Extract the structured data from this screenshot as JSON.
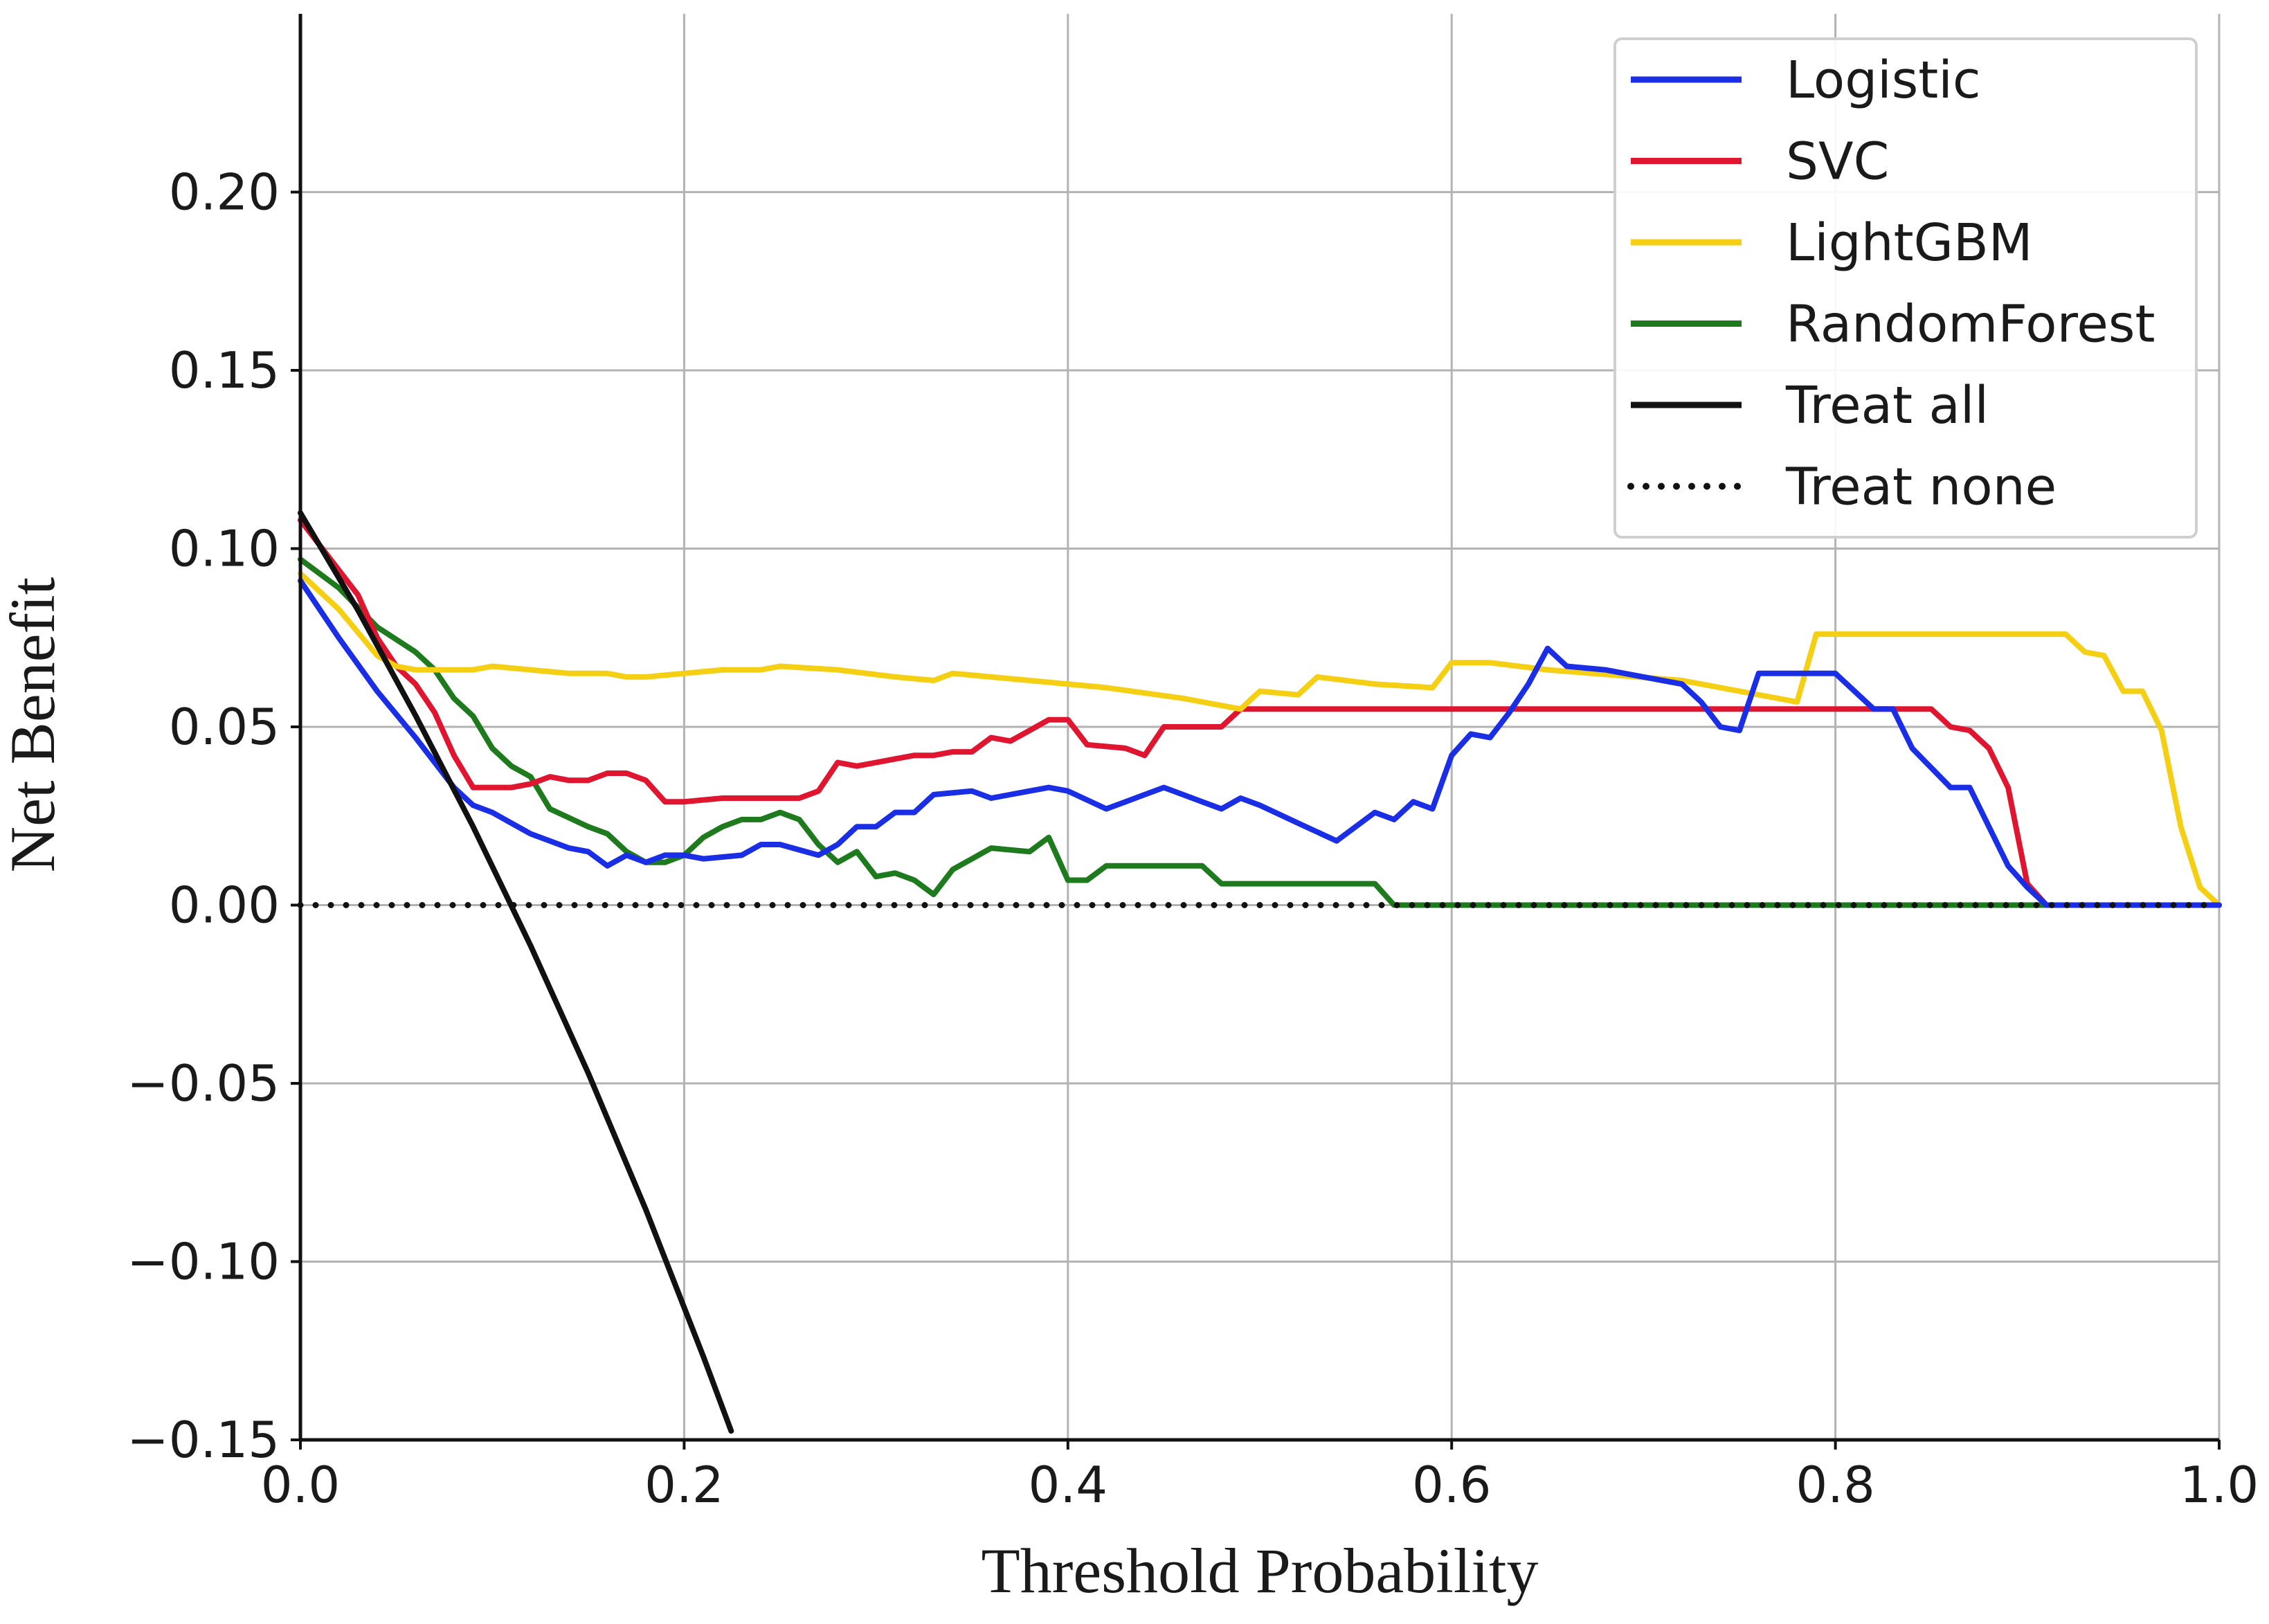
{
  "chart_data": {
    "type": "line",
    "xlabel": "Threshold Probability",
    "ylabel": "Net Benefit",
    "xlim": [
      0.0,
      1.0
    ],
    "ylim": [
      -0.15,
      0.25
    ],
    "xticks": [
      0.0,
      0.2,
      0.4,
      0.6,
      0.8,
      1.0
    ],
    "xtick_labels": [
      "0.0",
      "0.2",
      "0.4",
      "0.6",
      "0.8",
      "1.0"
    ],
    "yticks": [
      -0.15,
      -0.1,
      -0.05,
      0.0,
      0.05,
      0.1,
      0.15,
      0.2
    ],
    "ytick_labels": [
      "−0.15",
      "−0.10",
      "−0.05",
      "0.00",
      "0.05",
      "0.10",
      "0.15",
      "0.20"
    ],
    "grid": true,
    "legend_position": "top-right",
    "series": [
      {
        "name": "Logistic",
        "color": "#1a2ee6",
        "style": "solid",
        "points": [
          [
            0.0,
            0.091
          ],
          [
            0.02,
            0.075
          ],
          [
            0.04,
            0.06
          ],
          [
            0.06,
            0.047
          ],
          [
            0.08,
            0.033
          ],
          [
            0.09,
            0.028
          ],
          [
            0.1,
            0.026
          ],
          [
            0.11,
            0.023
          ],
          [
            0.12,
            0.02
          ],
          [
            0.14,
            0.016
          ],
          [
            0.15,
            0.015
          ],
          [
            0.16,
            0.011
          ],
          [
            0.17,
            0.014
          ],
          [
            0.18,
            0.012
          ],
          [
            0.19,
            0.014
          ],
          [
            0.2,
            0.014
          ],
          [
            0.21,
            0.013
          ],
          [
            0.23,
            0.014
          ],
          [
            0.24,
            0.017
          ],
          [
            0.25,
            0.017
          ],
          [
            0.27,
            0.014
          ],
          [
            0.28,
            0.017
          ],
          [
            0.29,
            0.022
          ],
          [
            0.3,
            0.022
          ],
          [
            0.31,
            0.026
          ],
          [
            0.32,
            0.026
          ],
          [
            0.33,
            0.031
          ],
          [
            0.35,
            0.032
          ],
          [
            0.36,
            0.03
          ],
          [
            0.38,
            0.032
          ],
          [
            0.39,
            0.033
          ],
          [
            0.4,
            0.032
          ],
          [
            0.42,
            0.027
          ],
          [
            0.43,
            0.029
          ],
          [
            0.45,
            0.033
          ],
          [
            0.47,
            0.029
          ],
          [
            0.48,
            0.027
          ],
          [
            0.49,
            0.03
          ],
          [
            0.5,
            0.028
          ],
          [
            0.52,
            0.023
          ],
          [
            0.54,
            0.018
          ],
          [
            0.56,
            0.026
          ],
          [
            0.57,
            0.024
          ],
          [
            0.58,
            0.029
          ],
          [
            0.59,
            0.027
          ],
          [
            0.6,
            0.042
          ],
          [
            0.61,
            0.048
          ],
          [
            0.62,
            0.047
          ],
          [
            0.63,
            0.054
          ],
          [
            0.64,
            0.062
          ],
          [
            0.65,
            0.072
          ],
          [
            0.66,
            0.067
          ],
          [
            0.68,
            0.066
          ],
          [
            0.7,
            0.064
          ],
          [
            0.72,
            0.062
          ],
          [
            0.73,
            0.057
          ],
          [
            0.74,
            0.05
          ],
          [
            0.75,
            0.049
          ],
          [
            0.76,
            0.065
          ],
          [
            0.8,
            0.065
          ],
          [
            0.82,
            0.055
          ],
          [
            0.83,
            0.055
          ],
          [
            0.84,
            0.044
          ],
          [
            0.86,
            0.033
          ],
          [
            0.87,
            0.033
          ],
          [
            0.89,
            0.011
          ],
          [
            0.9,
            0.005
          ],
          [
            0.91,
            0.0
          ],
          [
            1.0,
            0.0
          ]
        ]
      },
      {
        "name": "SVC",
        "color": "#e01530",
        "style": "solid",
        "points": [
          [
            0.0,
            0.108
          ],
          [
            0.01,
            0.101
          ],
          [
            0.02,
            0.094
          ],
          [
            0.03,
            0.087
          ],
          [
            0.04,
            0.075
          ],
          [
            0.05,
            0.067
          ],
          [
            0.06,
            0.062
          ],
          [
            0.07,
            0.054
          ],
          [
            0.08,
            0.042
          ],
          [
            0.09,
            0.033
          ],
          [
            0.1,
            0.033
          ],
          [
            0.11,
            0.033
          ],
          [
            0.12,
            0.034
          ],
          [
            0.13,
            0.036
          ],
          [
            0.14,
            0.035
          ],
          [
            0.15,
            0.035
          ],
          [
            0.16,
            0.037
          ],
          [
            0.17,
            0.037
          ],
          [
            0.18,
            0.035
          ],
          [
            0.19,
            0.029
          ],
          [
            0.2,
            0.029
          ],
          [
            0.22,
            0.03
          ],
          [
            0.24,
            0.03
          ],
          [
            0.26,
            0.03
          ],
          [
            0.27,
            0.032
          ],
          [
            0.28,
            0.04
          ],
          [
            0.29,
            0.039
          ],
          [
            0.3,
            0.04
          ],
          [
            0.31,
            0.041
          ],
          [
            0.32,
            0.042
          ],
          [
            0.33,
            0.042
          ],
          [
            0.34,
            0.043
          ],
          [
            0.35,
            0.043
          ],
          [
            0.36,
            0.047
          ],
          [
            0.37,
            0.046
          ],
          [
            0.38,
            0.049
          ],
          [
            0.39,
            0.052
          ],
          [
            0.4,
            0.052
          ],
          [
            0.41,
            0.045
          ],
          [
            0.43,
            0.044
          ],
          [
            0.44,
            0.042
          ],
          [
            0.45,
            0.05
          ],
          [
            0.48,
            0.05
          ],
          [
            0.49,
            0.055
          ],
          [
            0.84,
            0.055
          ],
          [
            0.85,
            0.055
          ],
          [
            0.86,
            0.05
          ],
          [
            0.87,
            0.049
          ],
          [
            0.88,
            0.044
          ],
          [
            0.89,
            0.033
          ],
          [
            0.9,
            0.006
          ],
          [
            0.91,
            0.0
          ],
          [
            1.0,
            0.0
          ]
        ]
      },
      {
        "name": "LightGBM",
        "color": "#f5cf14",
        "style": "solid",
        "points": [
          [
            0.0,
            0.093
          ],
          [
            0.02,
            0.083
          ],
          [
            0.04,
            0.07
          ],
          [
            0.05,
            0.067
          ],
          [
            0.06,
            0.066
          ],
          [
            0.08,
            0.066
          ],
          [
            0.09,
            0.066
          ],
          [
            0.1,
            0.067
          ],
          [
            0.12,
            0.066
          ],
          [
            0.14,
            0.065
          ],
          [
            0.16,
            0.065
          ],
          [
            0.17,
            0.064
          ],
          [
            0.18,
            0.064
          ],
          [
            0.2,
            0.065
          ],
          [
            0.22,
            0.066
          ],
          [
            0.24,
            0.066
          ],
          [
            0.25,
            0.067
          ],
          [
            0.28,
            0.066
          ],
          [
            0.31,
            0.064
          ],
          [
            0.33,
            0.063
          ],
          [
            0.34,
            0.065
          ],
          [
            0.38,
            0.063
          ],
          [
            0.42,
            0.061
          ],
          [
            0.46,
            0.058
          ],
          [
            0.49,
            0.055
          ],
          [
            0.5,
            0.06
          ],
          [
            0.52,
            0.059
          ],
          [
            0.53,
            0.064
          ],
          [
            0.56,
            0.062
          ],
          [
            0.59,
            0.061
          ],
          [
            0.6,
            0.068
          ],
          [
            0.62,
            0.068
          ],
          [
            0.65,
            0.066
          ],
          [
            0.72,
            0.063
          ],
          [
            0.78,
            0.057
          ],
          [
            0.79,
            0.076
          ],
          [
            0.92,
            0.076
          ],
          [
            0.93,
            0.071
          ],
          [
            0.94,
            0.07
          ],
          [
            0.95,
            0.06
          ],
          [
            0.96,
            0.06
          ],
          [
            0.97,
            0.049
          ],
          [
            0.98,
            0.022
          ],
          [
            0.99,
            0.005
          ],
          [
            1.0,
            0.0
          ]
        ]
      },
      {
        "name": "RandomForest",
        "color": "#1d7a1d",
        "style": "solid",
        "points": [
          [
            0.0,
            0.097
          ],
          [
            0.02,
            0.089
          ],
          [
            0.04,
            0.078
          ],
          [
            0.06,
            0.071
          ],
          [
            0.07,
            0.066
          ],
          [
            0.08,
            0.058
          ],
          [
            0.09,
            0.053
          ],
          [
            0.1,
            0.044
          ],
          [
            0.11,
            0.039
          ],
          [
            0.12,
            0.036
          ],
          [
            0.13,
            0.027
          ],
          [
            0.15,
            0.022
          ],
          [
            0.16,
            0.02
          ],
          [
            0.17,
            0.015
          ],
          [
            0.18,
            0.012
          ],
          [
            0.19,
            0.012
          ],
          [
            0.2,
            0.014
          ],
          [
            0.21,
            0.019
          ],
          [
            0.22,
            0.022
          ],
          [
            0.23,
            0.024
          ],
          [
            0.24,
            0.024
          ],
          [
            0.25,
            0.026
          ],
          [
            0.26,
            0.024
          ],
          [
            0.27,
            0.017
          ],
          [
            0.28,
            0.012
          ],
          [
            0.29,
            0.015
          ],
          [
            0.3,
            0.008
          ],
          [
            0.31,
            0.009
          ],
          [
            0.32,
            0.007
          ],
          [
            0.33,
            0.003
          ],
          [
            0.34,
            0.01
          ],
          [
            0.35,
            0.013
          ],
          [
            0.36,
            0.016
          ],
          [
            0.38,
            0.015
          ],
          [
            0.39,
            0.019
          ],
          [
            0.4,
            0.007
          ],
          [
            0.41,
            0.007
          ],
          [
            0.42,
            0.011
          ],
          [
            0.47,
            0.011
          ],
          [
            0.48,
            0.006
          ],
          [
            0.56,
            0.006
          ],
          [
            0.57,
            0.0
          ],
          [
            1.0,
            0.0
          ]
        ]
      },
      {
        "name": "Treat all",
        "color": "#111111",
        "style": "solid",
        "points": [
          [
            0.0,
            0.11
          ],
          [
            0.03,
            0.0827
          ],
          [
            0.06,
            0.0532
          ],
          [
            0.09,
            0.022
          ],
          [
            0.12,
            -0.0114
          ],
          [
            0.15,
            -0.0471
          ],
          [
            0.18,
            -0.0854
          ],
          [
            0.21,
            -0.1266
          ],
          [
            0.2245,
            -0.1475
          ]
        ]
      },
      {
        "name": "Treat none",
        "color": "#111111",
        "style": "dotted",
        "points": [
          [
            0.0,
            0.0
          ],
          [
            1.0,
            0.0
          ]
        ]
      }
    ]
  }
}
